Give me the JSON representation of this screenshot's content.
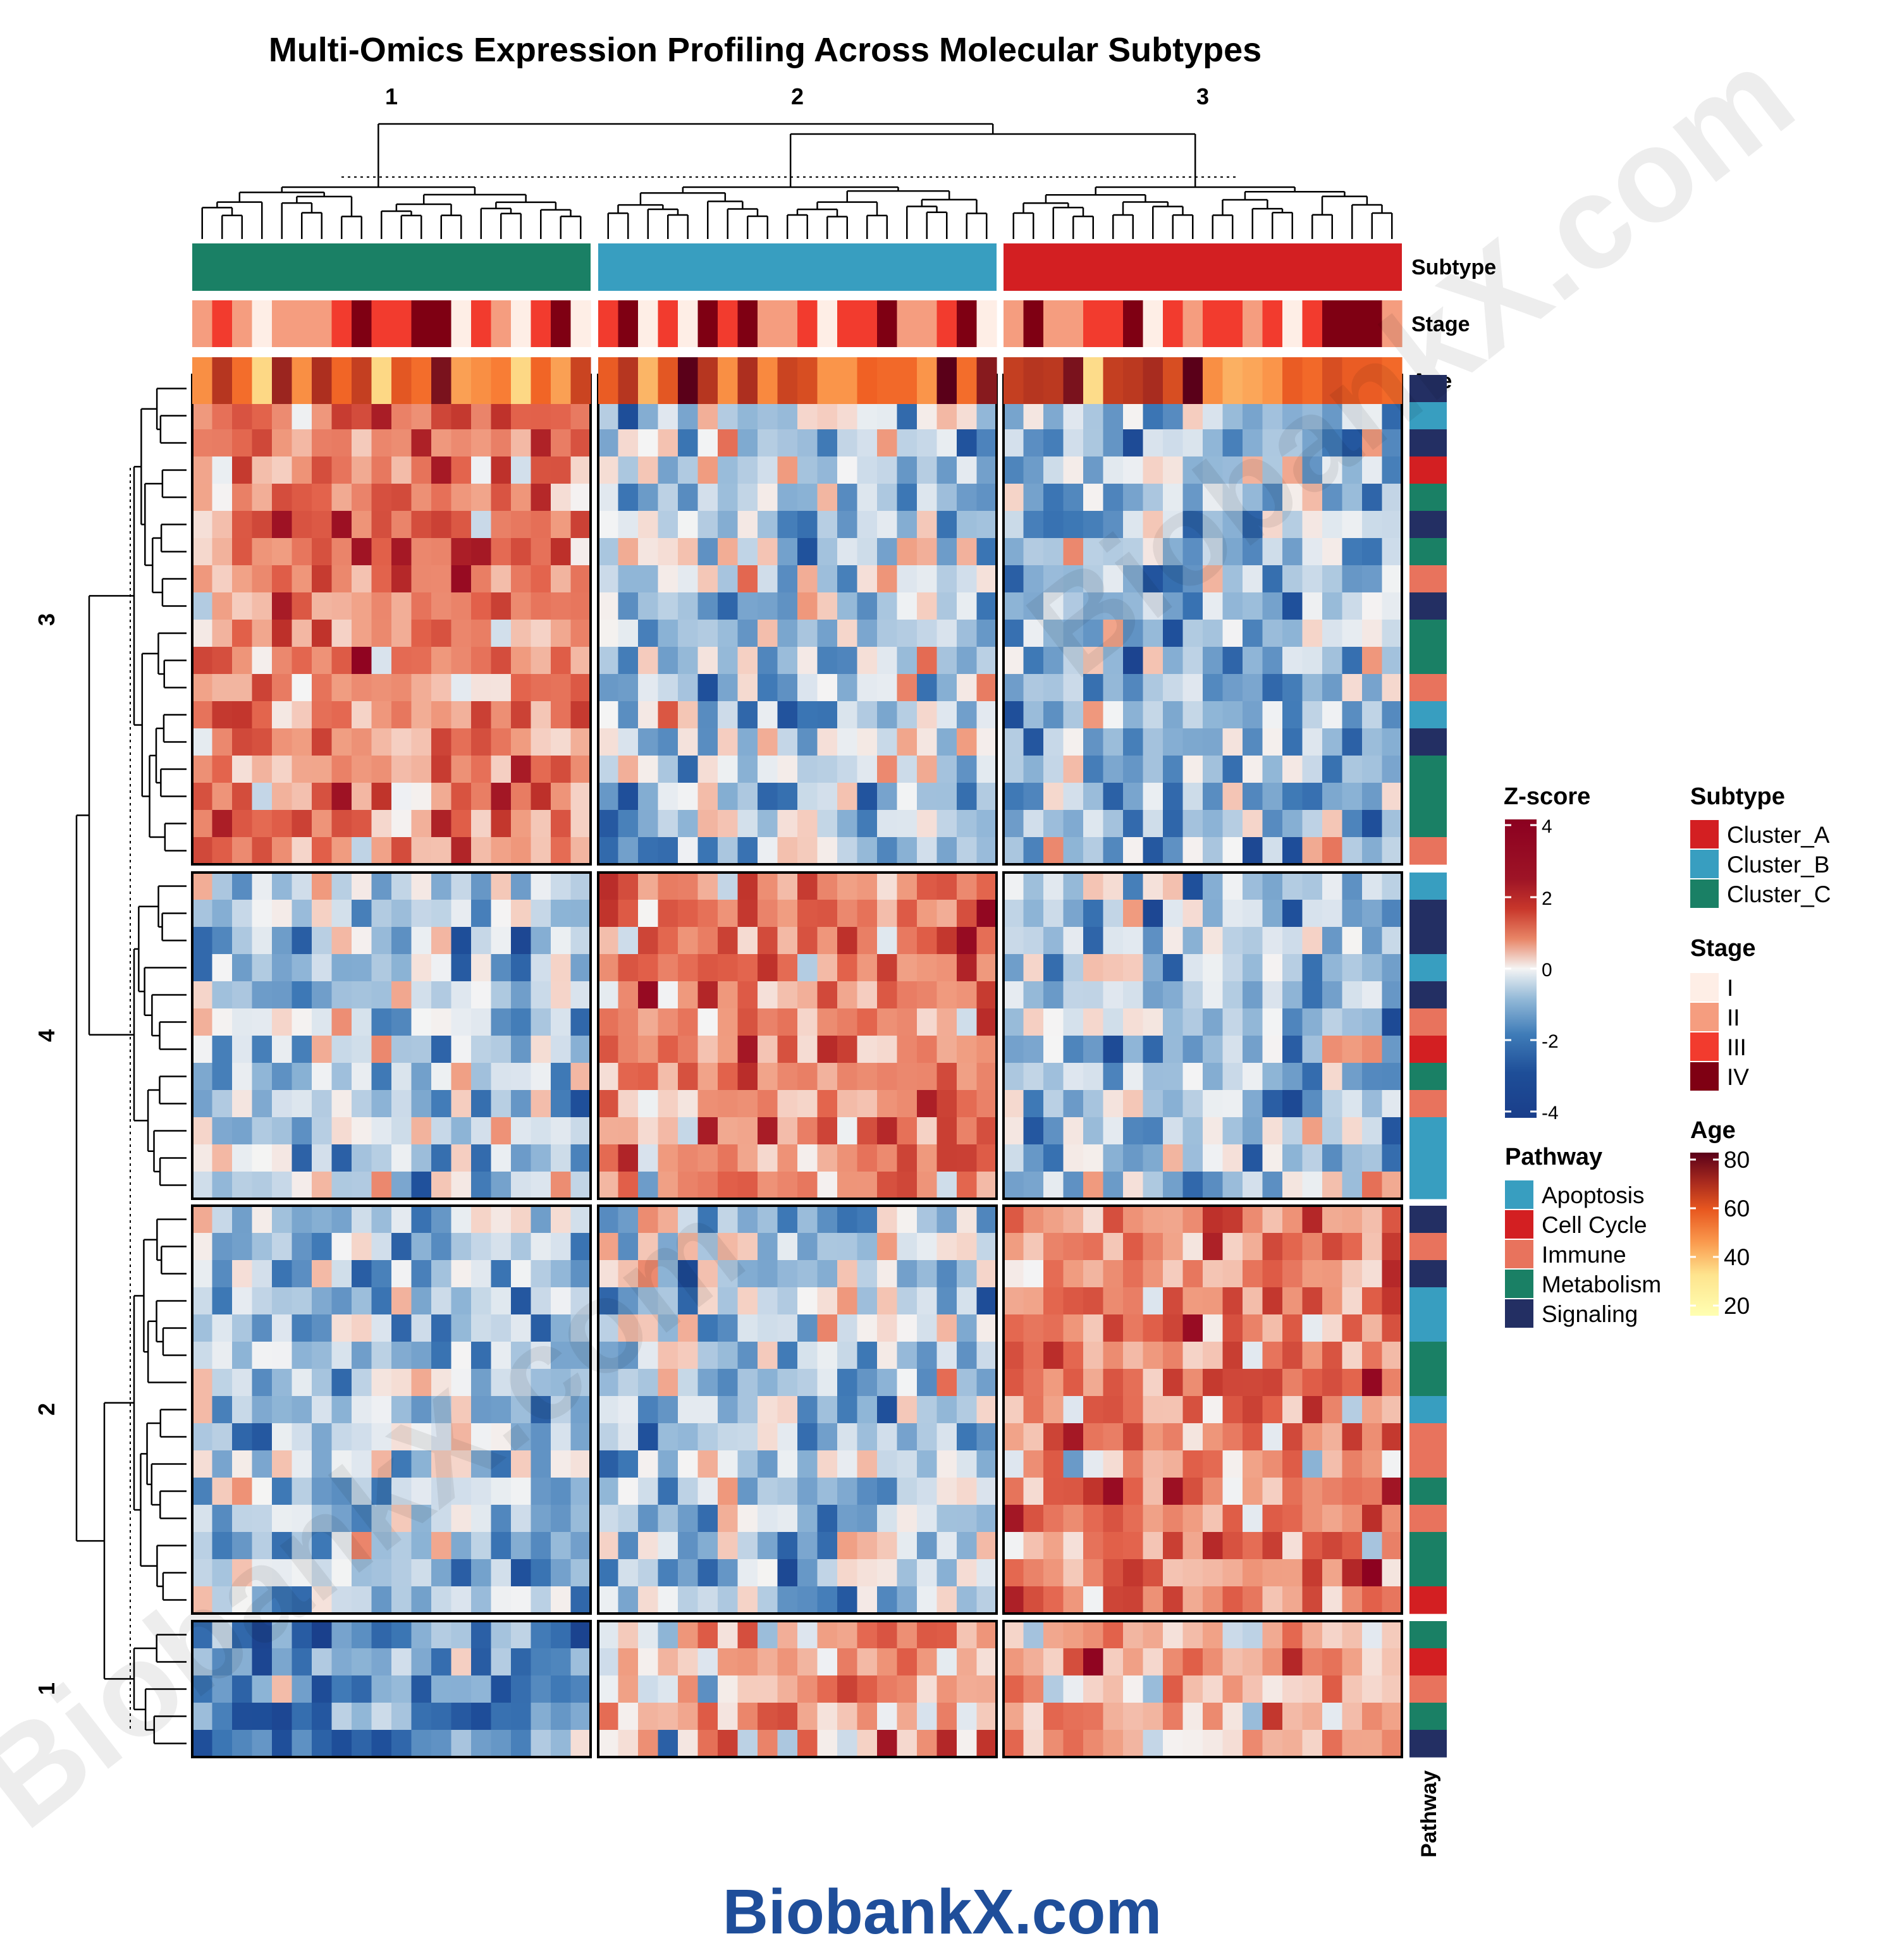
{
  "chart_data": {
    "type": "heatmap",
    "title": "Multi-Omics Expression Profiling Across Molecular Subtypes",
    "column_split_labels": [
      "1",
      "2",
      "3"
    ],
    "row_split_labels": [
      "3",
      "4",
      "2",
      "1"
    ],
    "value_range": [
      -4,
      4
    ],
    "columns_per_split": 20,
    "rows_per_split": [
      18,
      12,
      15,
      5
    ],
    "block_mean_zscore": {
      "note": "approximate mean Z-score per row split (rows) x column split (cols)",
      "rows": [
        "3",
        "4",
        "2",
        "1"
      ],
      "cols": [
        "1",
        "2",
        "3"
      ],
      "values": [
        [
          1.3,
          -0.6,
          -0.9
        ],
        [
          -0.7,
          1.4,
          -0.7
        ],
        [
          -0.8,
          -0.6,
          1.4
        ],
        [
          -1.4,
          0.7,
          0.8
        ]
      ]
    },
    "column_annotations": {
      "Subtype": [
        "Cluster_C",
        "Cluster_B",
        "Cluster_A"
      ],
      "Stage": [
        [
          "II",
          "III",
          "II",
          "I",
          "II",
          "II",
          "II",
          "III",
          "IV",
          "III",
          "III",
          "IV",
          "IV",
          "I",
          "III",
          "II",
          "I",
          "III",
          "IV",
          "I"
        ],
        [
          "III",
          "IV",
          "I",
          "III",
          "I",
          "IV",
          "III",
          "IV",
          "II",
          "II",
          "III",
          "I",
          "III",
          "III",
          "IV",
          "II",
          "II",
          "III",
          "IV",
          "I"
        ],
        [
          "II",
          "IV",
          "II",
          "II",
          "III",
          "III",
          "IV",
          "I",
          "III",
          "II",
          "III",
          "III",
          "II",
          "III",
          "I",
          "III",
          "IV",
          "IV",
          "IV",
          "II"
        ]
      ],
      "Age": [
        [
          45,
          65,
          52,
          30,
          70,
          45,
          67,
          54,
          62,
          30,
          57,
          52,
          75,
          42,
          45,
          48,
          30,
          54,
          42,
          61
        ],
        [
          56,
          65,
          38,
          57,
          80,
          65,
          45,
          67,
          46,
          61,
          59,
          44,
          44,
          55,
          53,
          53,
          44,
          80,
          52,
          73
        ],
        [
          62,
          65,
          64,
          75,
          29,
          62,
          64,
          68,
          59,
          80,
          45,
          39,
          41,
          44,
          56,
          53,
          59,
          56,
          56,
          53
        ]
      ]
    },
    "row_annotations": {
      "Pathway": [
        [
          "Signaling",
          "Apoptosis",
          "Signaling",
          "Cell Cycle",
          "Metabolism",
          "Signaling",
          "Metabolism",
          "Immune",
          "Signaling",
          "Metabolism",
          "Metabolism",
          "Immune",
          "Apoptosis",
          "Signaling",
          "Metabolism",
          "Metabolism",
          "Metabolism",
          "Immune"
        ],
        [
          "Apoptosis",
          "Signaling",
          "Signaling",
          "Apoptosis",
          "Signaling",
          "Immune",
          "Cell Cycle",
          "Metabolism",
          "Immune",
          "Apoptosis",
          "Apoptosis",
          "Apoptosis"
        ],
        [
          "Signaling",
          "Immune",
          "Signaling",
          "Apoptosis",
          "Apoptosis",
          "Metabolism",
          "Metabolism",
          "Apoptosis",
          "Immune",
          "Immune",
          "Metabolism",
          "Immune",
          "Metabolism",
          "Metabolism",
          "Cell Cycle"
        ],
        [
          "Metabolism",
          "Cell Cycle",
          "Immune",
          "Metabolism",
          "Signaling"
        ]
      ]
    }
  },
  "annotation_labels": {
    "subtype": "Subtype",
    "stage": "Stage",
    "age": "Age",
    "pathway": "Pathway"
  },
  "legends": {
    "zscore": {
      "title": "Z-score",
      "ticks": [
        "4",
        "2",
        "0",
        "-2",
        "-4"
      ]
    },
    "subtype": {
      "title": "Subtype",
      "items": [
        {
          "label": "Cluster_A",
          "color": "#D31F22"
        },
        {
          "label": "Cluster_B",
          "color": "#389EC0"
        },
        {
          "label": "Cluster_C",
          "color": "#1A8065"
        }
      ]
    },
    "stage": {
      "title": "Stage",
      "items": [
        {
          "label": "I",
          "color": "#FEEEE6"
        },
        {
          "label": "II",
          "color": "#F59D7F"
        },
        {
          "label": "III",
          "color": "#F23B2E"
        },
        {
          "label": "IV",
          "color": "#7F0013"
        }
      ]
    },
    "age": {
      "title": "Age",
      "ticks": [
        "80",
        "60",
        "40",
        "20"
      ]
    },
    "pathway": {
      "title": "Pathway",
      "items": [
        {
          "label": "Apoptosis",
          "color": "#389EC0"
        },
        {
          "label": "Cell Cycle",
          "color": "#D31F22"
        },
        {
          "label": "Immune",
          "color": "#E8735D"
        },
        {
          "label": "Metabolism",
          "color": "#1A8065"
        },
        {
          "label": "Signaling",
          "color": "#232F63"
        }
      ]
    }
  },
  "watermark": "BiobankX.com",
  "footer_logo": "BiobankX.com"
}
